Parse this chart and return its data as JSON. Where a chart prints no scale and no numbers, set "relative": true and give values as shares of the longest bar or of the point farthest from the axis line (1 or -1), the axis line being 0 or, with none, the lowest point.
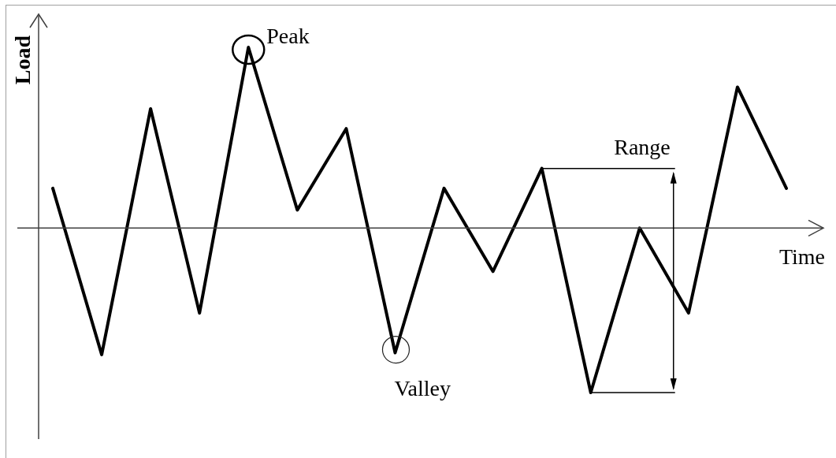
{
  "chart_data": {
    "type": "line",
    "xlabel": "Time",
    "ylabel": "Load",
    "relative": true,
    "categories": [
      null,
      null,
      null,
      null,
      null,
      null,
      null,
      null,
      null,
      null,
      null,
      null,
      null,
      null,
      null,
      null
    ],
    "values": [
      0.22,
      -0.7,
      0.66,
      -0.47,
      1,
      0.1,
      0.55,
      -0.69,
      0.22,
      -0.24,
      0.33,
      -0.91,
      0,
      -0.47,
      0.78,
      0.22
    ],
    "color": "#000000",
    "marker": "none",
    "line_style": "solid",
    "annotations": [
      "Peak",
      "Valley",
      "Range"
    ]
  }
}
